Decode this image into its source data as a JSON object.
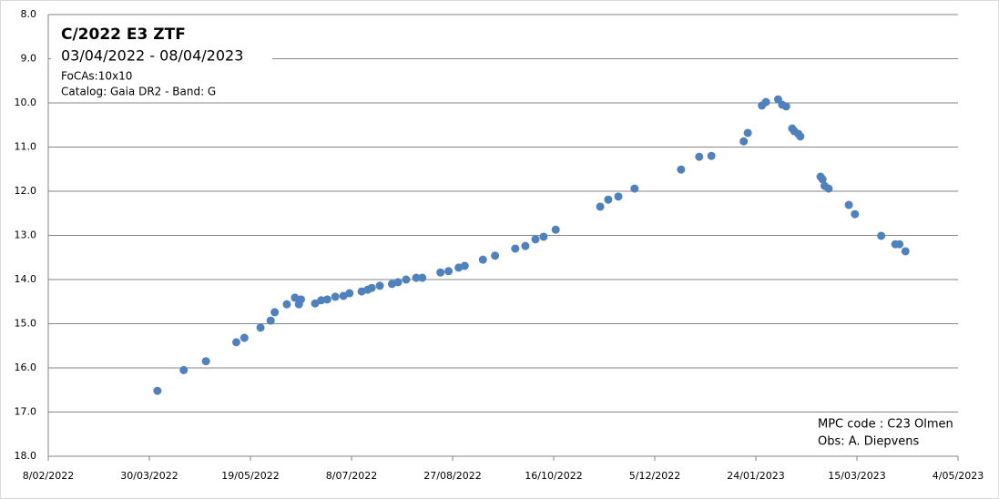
{
  "chart_data": {
    "type": "scatter",
    "title": "C/2022 E3 ZTF",
    "subtitle": "03/04/2022 - 08/04/2023",
    "annotations": [
      "FoCAs:10x10",
      "Catalog: Gaia DR2 - Band: G",
      "MPC code : C23 Olmen",
      "Obs: A. Diepvens"
    ],
    "color": "#4f81bd",
    "grid": true,
    "y_reversed": true,
    "xlim": [
      "2022-02-08",
      "2023-05-04"
    ],
    "xticks": [
      {
        "value": "2022-02-08",
        "label": "8/02/2022"
      },
      {
        "value": "2022-03-30",
        "label": "30/03/2022"
      },
      {
        "value": "2022-05-19",
        "label": "19/05/2022"
      },
      {
        "value": "2022-07-08",
        "label": "8/07/2022"
      },
      {
        "value": "2022-08-27",
        "label": "27/08/2022"
      },
      {
        "value": "2022-10-16",
        "label": "16/10/2022"
      },
      {
        "value": "2022-12-05",
        "label": "5/12/2022"
      },
      {
        "value": "2023-01-24",
        "label": "24/01/2023"
      },
      {
        "value": "2023-03-15",
        "label": "15/03/2023"
      },
      {
        "value": "2023-05-04",
        "label": "4/05/2023"
      }
    ],
    "ylim": [
      8,
      18
    ],
    "yticks": [
      {
        "value": 8,
        "label": "8.0"
      },
      {
        "value": 9,
        "label": "9.0"
      },
      {
        "value": 10,
        "label": "10.0"
      },
      {
        "value": 11,
        "label": "11.0"
      },
      {
        "value": 12,
        "label": "12.0"
      },
      {
        "value": 13,
        "label": "13.0"
      },
      {
        "value": 14,
        "label": "14.0"
      },
      {
        "value": 15,
        "label": "15.0"
      },
      {
        "value": 16,
        "label": "16.0"
      },
      {
        "value": 17,
        "label": "17.0"
      },
      {
        "value": 18,
        "label": "18.0"
      }
    ],
    "x": [
      "2022-04-03",
      "2022-04-16",
      "2022-04-27",
      "2022-05-12",
      "2022-05-16",
      "2022-05-24",
      "2022-05-29",
      "2022-05-31",
      "2022-06-06",
      "2022-06-10",
      "2022-06-12",
      "2022-06-13",
      "2022-06-20",
      "2022-06-23",
      "2022-06-26",
      "2022-06-30",
      "2022-07-04",
      "2022-07-07",
      "2022-07-13",
      "2022-07-16",
      "2022-07-18",
      "2022-07-22",
      "2022-07-28",
      "2022-07-31",
      "2022-08-04",
      "2022-08-09",
      "2022-08-12",
      "2022-08-21",
      "2022-08-25",
      "2022-08-30",
      "2022-09-02",
      "2022-09-11",
      "2022-09-17",
      "2022-09-27",
      "2022-10-02",
      "2022-10-07",
      "2022-10-11",
      "2022-10-17",
      "2022-11-08",
      "2022-11-12",
      "2022-11-17",
      "2022-11-25",
      "2022-12-18",
      "2022-12-27",
      "2023-01-02",
      "2023-01-18",
      "2023-01-20",
      "2023-01-27",
      "2023-01-29",
      "2023-02-04",
      "2023-02-06",
      "2023-02-08",
      "2023-02-11",
      "2023-02-12",
      "2023-02-14",
      "2023-02-15",
      "2023-02-25",
      "2023-02-26",
      "2023-02-27",
      "2023-03-01",
      "2023-03-11",
      "2023-03-14",
      "2023-03-27",
      "2023-04-03",
      "2023-04-05",
      "2023-04-08"
    ],
    "values": [
      16.52,
      16.05,
      15.85,
      15.42,
      15.32,
      15.09,
      14.93,
      14.74,
      14.56,
      14.41,
      14.56,
      14.45,
      14.54,
      14.47,
      14.45,
      14.39,
      14.37,
      14.31,
      14.27,
      14.23,
      14.19,
      14.14,
      14.1,
      14.06,
      14.0,
      13.96,
      13.96,
      13.84,
      13.81,
      13.73,
      13.69,
      13.55,
      13.46,
      13.3,
      13.24,
      13.09,
      13.03,
      12.87,
      12.35,
      12.19,
      12.12,
      11.94,
      11.51,
      11.22,
      11.2,
      10.87,
      10.68,
      10.06,
      9.98,
      9.92,
      10.04,
      10.08,
      10.58,
      10.64,
      10.7,
      10.76,
      11.67,
      11.73,
      11.88,
      11.94,
      12.31,
      12.52,
      13.01,
      13.2,
      13.2,
      13.36
    ]
  }
}
